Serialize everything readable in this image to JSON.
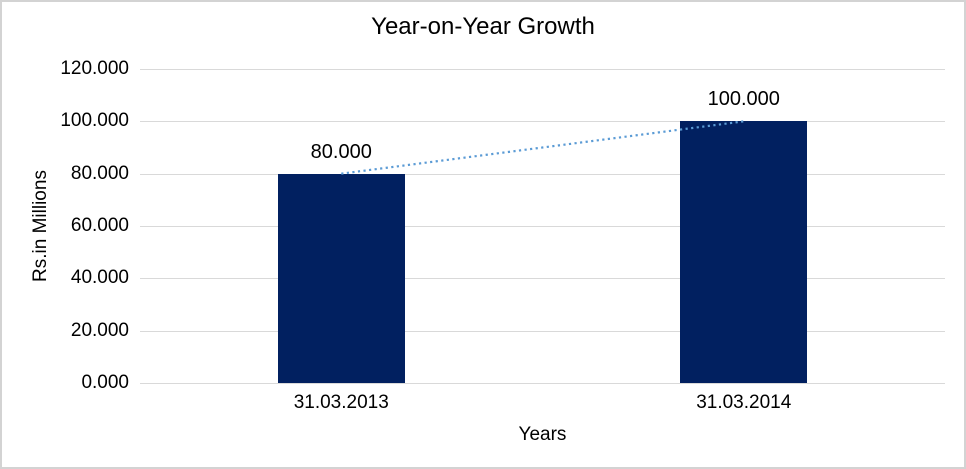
{
  "frame": {
    "background": "#ffffff",
    "border_color": "#d3d3d3"
  },
  "chart_data": {
    "type": "bar",
    "title": "Year-on-Year Growth",
    "xlabel": "Years",
    "ylabel": "Rs.in Millions",
    "categories": [
      "31.03.2013",
      "31.03.2014"
    ],
    "values": [
      80,
      100
    ],
    "data_labels": [
      "80.000",
      "100.000"
    ],
    "y_ticks": [
      {
        "value": 0,
        "label": "0.000"
      },
      {
        "value": 20,
        "label": "20.000"
      },
      {
        "value": 40,
        "label": "40.000"
      },
      {
        "value": 60,
        "label": "60.000"
      },
      {
        "value": 80,
        "label": "80.000"
      },
      {
        "value": 100,
        "label": "100.000"
      },
      {
        "value": 120,
        "label": "120.000"
      }
    ],
    "ylim": [
      0,
      120
    ],
    "grid": true,
    "legend": false,
    "colors": {
      "bar": "#012060",
      "gridline": "#d9d9d9",
      "axis_line": "#d9d9d9",
      "trendline": "#5b9bd5",
      "text": "#000000"
    },
    "trendline": {
      "style": "dotted",
      "from_category_index": 0,
      "to_category_index": 1
    }
  }
}
